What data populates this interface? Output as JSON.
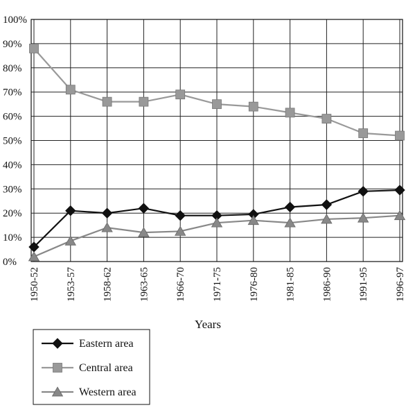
{
  "chart_data": {
    "type": "line",
    "title": "",
    "xlabel": "Years",
    "ylabel": "",
    "categories": [
      "1950-52",
      "1953-57",
      "1958-62",
      "1963-65",
      "1966-70",
      "1971-75",
      "1976-80",
      "1981-85",
      "1986-90",
      "1991-95",
      "1996-97"
    ],
    "y_tick_labels": [
      "0%",
      "10%",
      "20%",
      "30%",
      "40%",
      "50%",
      "60%",
      "70%",
      "80%",
      "90%",
      "100%"
    ],
    "ylim": [
      0,
      100
    ],
    "grid": true,
    "legend_position": "bottom-left",
    "series": [
      {
        "name": "Eastern area",
        "marker": "diamond",
        "color": "#111111",
        "values": [
          6,
          21,
          20,
          22,
          19,
          19,
          19.5,
          22.5,
          23.5,
          29,
          29.5
        ]
      },
      {
        "name": "Central area",
        "marker": "square",
        "color": "#999999",
        "values": [
          88,
          71,
          66,
          66,
          69,
          65,
          64,
          61.5,
          59,
          53,
          52
        ]
      },
      {
        "name": "Western area",
        "marker": "triangle",
        "color": "#888888",
        "values": [
          2,
          8.5,
          14,
          12,
          12.5,
          16,
          17,
          16,
          17.5,
          18,
          19
        ]
      }
    ]
  }
}
